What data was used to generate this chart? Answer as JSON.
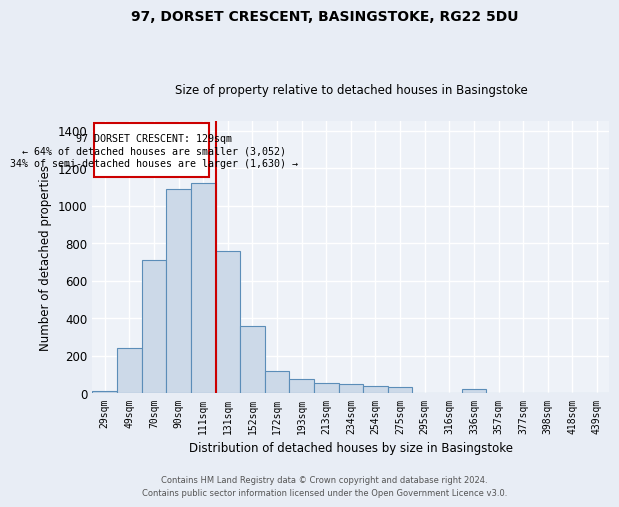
{
  "title1": "97, DORSET CRESCENT, BASINGSTOKE, RG22 5DU",
  "title2": "Size of property relative to detached houses in Basingstoke",
  "xlabel": "Distribution of detached houses by size in Basingstoke",
  "ylabel": "Number of detached properties",
  "categories": [
    "29sqm",
    "49sqm",
    "70sqm",
    "90sqm",
    "111sqm",
    "131sqm",
    "152sqm",
    "172sqm",
    "193sqm",
    "213sqm",
    "234sqm",
    "254sqm",
    "275sqm",
    "295sqm",
    "316sqm",
    "336sqm",
    "357sqm",
    "377sqm",
    "398sqm",
    "418sqm",
    "439sqm"
  ],
  "values": [
    10,
    240,
    710,
    1090,
    1120,
    760,
    360,
    120,
    75,
    55,
    50,
    40,
    30,
    0,
    0,
    20,
    0,
    0,
    0,
    0,
    0
  ],
  "bar_color": "#ccd9e8",
  "bar_edge_color": "#5b8db8",
  "bar_linewidth": 0.8,
  "vline_x": 4.5,
  "vline_color": "#cc0000",
  "annotation_line1": "97 DORSET CRESCENT: 129sqm",
  "annotation_line2": "← 64% of detached houses are smaller (3,052)",
  "annotation_line3": "34% of semi-detached houses are larger (1,630) →",
  "ylim": [
    0,
    1450
  ],
  "yticks": [
    0,
    200,
    400,
    600,
    800,
    1000,
    1200,
    1400
  ],
  "footnote": "Contains HM Land Registry data © Crown copyright and database right 2024.\nContains public sector information licensed under the Open Government Licence v3.0.",
  "bg_color": "#e8edf5",
  "plot_bg_color": "#eef2f8"
}
